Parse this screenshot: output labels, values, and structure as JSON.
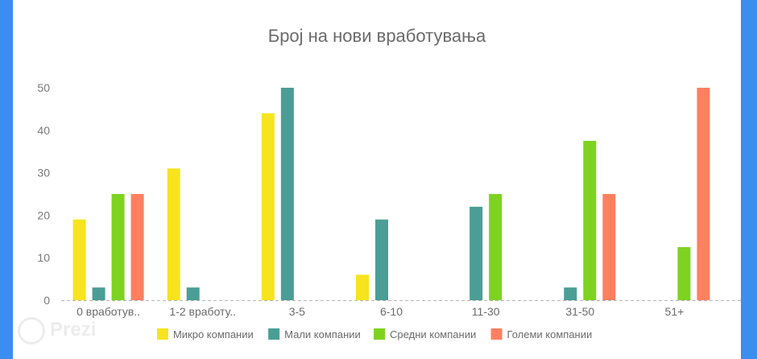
{
  "chart_data": {
    "type": "bar",
    "title": "Број на нови вработувања",
    "xlabel": "",
    "ylabel": "",
    "ylim": [
      0,
      50
    ],
    "yticks": [
      0,
      10,
      20,
      30,
      40,
      50
    ],
    "categories": [
      "0 вработув..",
      "1-2 вработу..",
      "3-5",
      "6-10",
      "11-30",
      "31-50",
      "51+"
    ],
    "series": [
      {
        "name": "Микро компании",
        "color": "#f7e41e",
        "values": [
          19,
          31,
          44,
          6,
          0,
          0,
          0
        ]
      },
      {
        "name": "Мали компании",
        "color": "#4a9e96",
        "values": [
          3,
          3,
          50,
          19,
          22,
          3,
          0
        ]
      },
      {
        "name": "Средни компании",
        "color": "#7ed321",
        "values": [
          25,
          0,
          0,
          0,
          25,
          37.5,
          12.5
        ]
      },
      {
        "name": "Големи компании",
        "color": "#ff8060",
        "values": [
          25,
          0,
          0,
          0,
          0,
          25,
          50
        ]
      }
    ],
    "grid": false,
    "legend": "bottom"
  },
  "watermark": {
    "text": "Prezi"
  }
}
